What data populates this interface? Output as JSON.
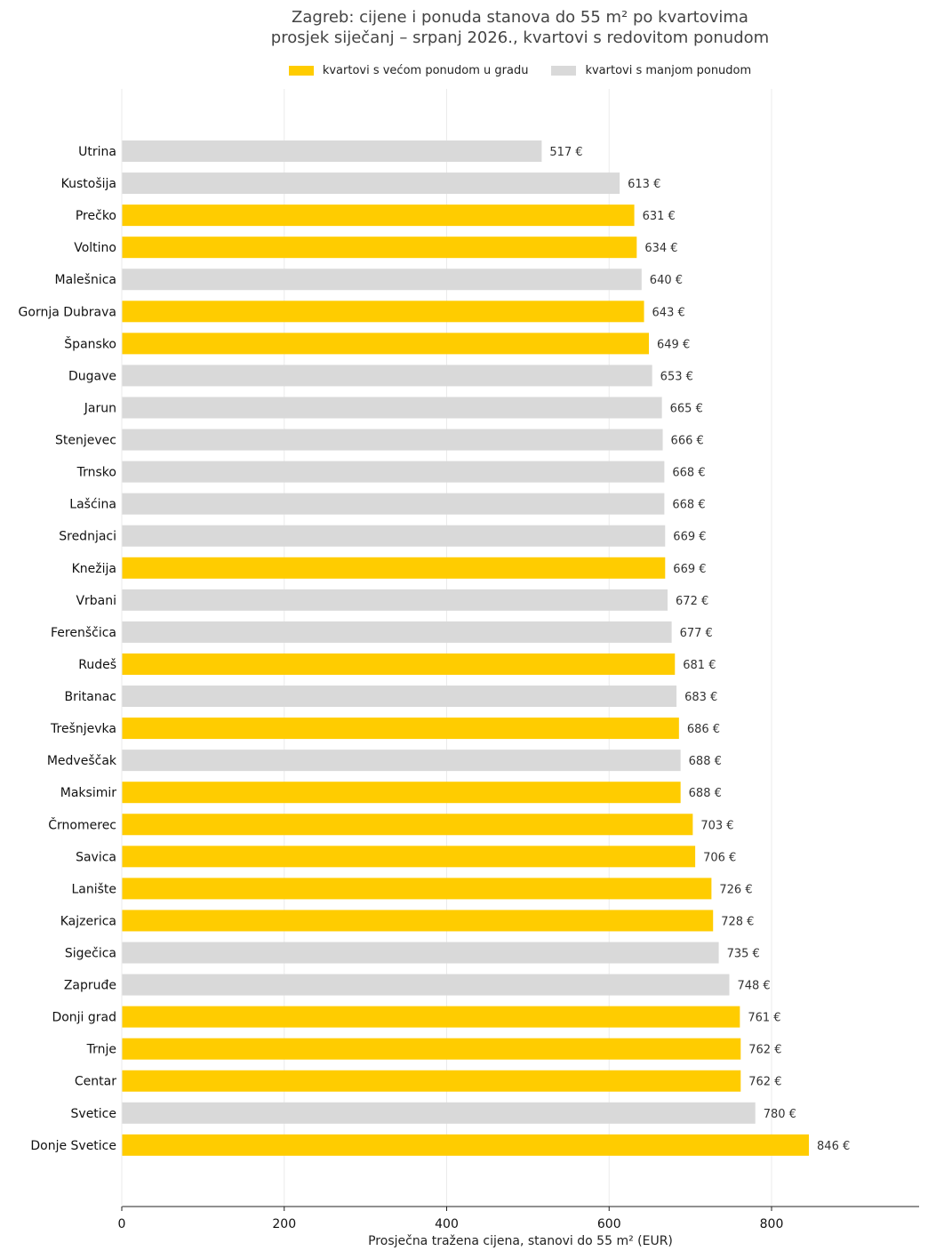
{
  "chart_data": {
    "type": "bar",
    "orientation": "horizontal",
    "title": "Zagreb: cijene i ponuda stanova do 55 m² po kvartovima",
    "subtitle": "prosjek siječanj – srpanj 2026., kvartovi s redovitom ponudom",
    "xlabel": "Prosječna tražena cijena, stanovi do 55 m² (EUR)",
    "ylabel": "",
    "xlim": [
      0,
      980
    ],
    "xticks": [
      0,
      200,
      400,
      600,
      800
    ],
    "value_suffix": " €",
    "grid": "vertical",
    "legend_position": "top",
    "colors": {
      "high_supply": "#FFCC00",
      "low_supply": "#D9D9D9"
    },
    "series": [
      {
        "key": "high_supply",
        "name": "kvartovi s većom ponudom u gradu"
      },
      {
        "key": "low_supply",
        "name": "kvartovi s manjom ponudom"
      }
    ],
    "categories": [
      "Utrina",
      "Kustošija",
      "Prečko",
      "Voltino",
      "Malešnica",
      "Gornja Dubrava",
      "Špansko",
      "Dugave",
      "Jarun",
      "Stenjevec",
      "Trnsko",
      "Lašćina",
      "Srednjaci",
      "Knežija",
      "Vrbani",
      "Ferenščica",
      "Rudeš",
      "Britanac",
      "Trešnjevka",
      "Medveščak",
      "Maksimir",
      "Črnomerec",
      "Savica",
      "Lanište",
      "Kajzerica",
      "Sigečica",
      "Zapruđe",
      "Donji grad",
      "Trnje",
      "Centar",
      "Svetice",
      "Donje Svetice"
    ],
    "values": [
      517,
      613,
      631,
      634,
      640,
      643,
      649,
      653,
      665,
      666,
      668,
      668,
      669,
      669,
      672,
      677,
      681,
      683,
      686,
      688,
      688,
      703,
      706,
      726,
      728,
      735,
      748,
      761,
      762,
      762,
      780,
      846
    ],
    "groups": [
      "low_supply",
      "low_supply",
      "high_supply",
      "high_supply",
      "low_supply",
      "high_supply",
      "high_supply",
      "low_supply",
      "low_supply",
      "low_supply",
      "low_supply",
      "low_supply",
      "low_supply",
      "high_supply",
      "low_supply",
      "low_supply",
      "high_supply",
      "low_supply",
      "high_supply",
      "low_supply",
      "high_supply",
      "high_supply",
      "high_supply",
      "high_supply",
      "high_supply",
      "low_supply",
      "low_supply",
      "high_supply",
      "high_supply",
      "high_supply",
      "low_supply",
      "high_supply"
    ]
  }
}
